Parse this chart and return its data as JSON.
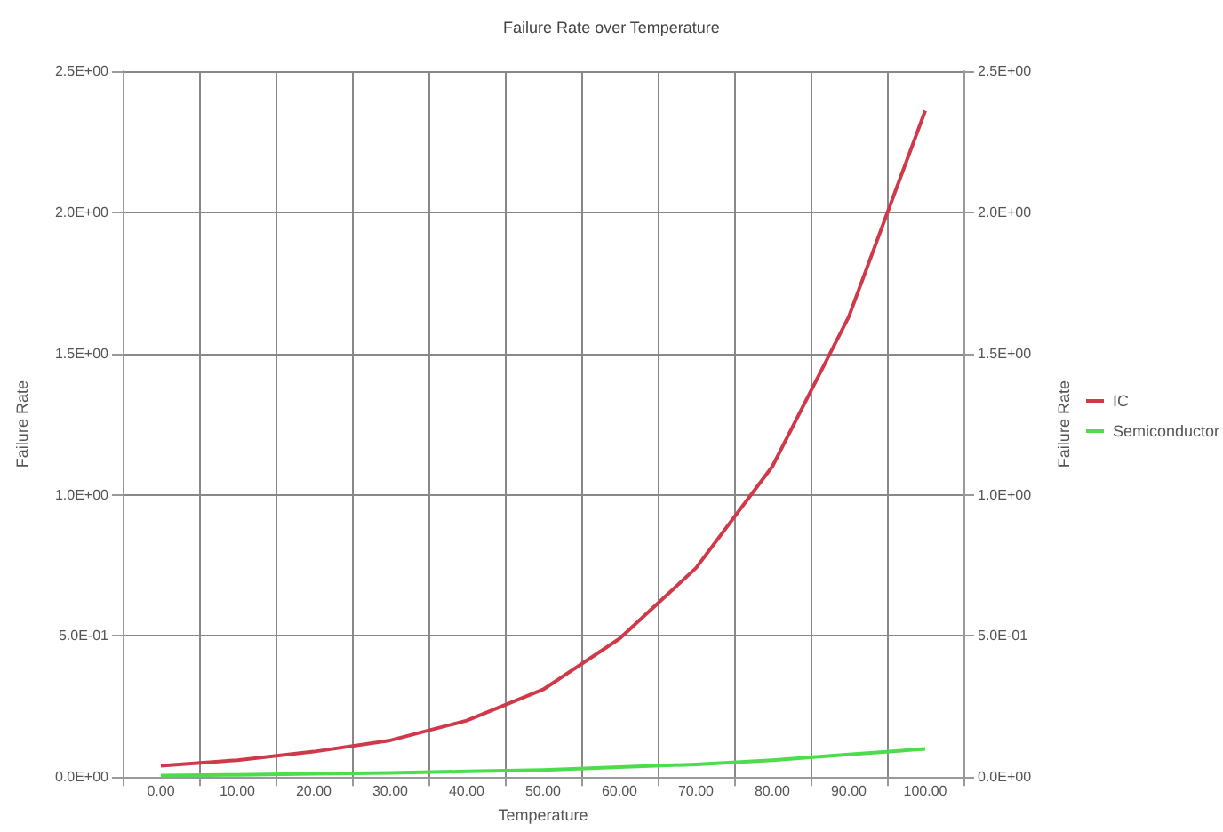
{
  "chart_data": {
    "type": "line",
    "title": "Failure Rate over Temperature",
    "xlabel": "Temperature",
    "ylabel": "Failure Rate",
    "y2label": "Failure Rate",
    "categories": [
      "0.00",
      "10.00",
      "20.00",
      "30.00",
      "40.00",
      "50.00",
      "60.00",
      "70.00",
      "80.00",
      "90.00",
      "100.00"
    ],
    "series": [
      {
        "name": "IC",
        "color": "#d0394a",
        "values": [
          0.04,
          0.06,
          0.09,
          0.13,
          0.2,
          0.31,
          0.49,
          0.74,
          1.1,
          1.63,
          2.36
        ]
      },
      {
        "name": "Semiconductor",
        "color": "#4cdc4c",
        "values": [
          0.005,
          0.008,
          0.012,
          0.015,
          0.02,
          0.025,
          0.035,
          0.045,
          0.06,
          0.08,
          0.1
        ]
      }
    ],
    "ylim": [
      0,
      2.5
    ],
    "yticks": [
      {
        "value": 0,
        "label": "0.0E+00"
      },
      {
        "value": 0.5,
        "label": "5.0E-01"
      },
      {
        "value": 1,
        "label": "1.0E+00"
      },
      {
        "value": 1.5,
        "label": "1.5E+00"
      },
      {
        "value": 2,
        "label": "2.0E+00"
      },
      {
        "value": 2.5,
        "label": "2.5E+00"
      }
    ],
    "y2lim": [
      0,
      2.5
    ],
    "y2ticks": [
      {
        "value": 0,
        "label": "0.0E+00"
      },
      {
        "value": 0.5,
        "label": "5.0E-01"
      },
      {
        "value": 1,
        "label": "1.0E+00"
      },
      {
        "value": 1.5,
        "label": "1.5E+00"
      },
      {
        "value": 2,
        "label": "2.0E+00"
      },
      {
        "value": 2.5,
        "label": "2.5E+00"
      }
    ],
    "grid": true,
    "legend": "right",
    "marker": "none",
    "line_style": "solid"
  }
}
